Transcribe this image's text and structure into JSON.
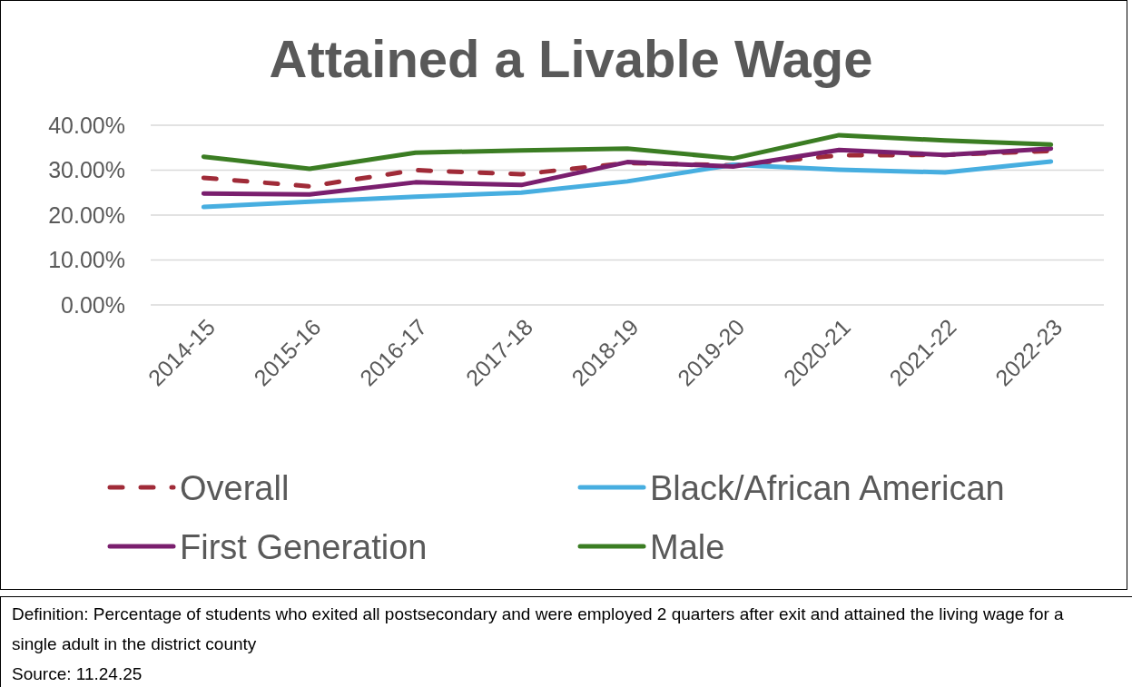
{
  "chart_data": {
    "type": "line",
    "title": "Attained a Livable Wage",
    "categories": [
      "2014-15",
      "2015-16",
      "2016-17",
      "2017-18",
      "2018-19",
      "2019-20",
      "2020-21",
      "2021-22",
      "2022-23"
    ],
    "series": [
      {
        "name": "Overall",
        "color": "#a02b38",
        "line_style": "dashed",
        "values": [
          28.3,
          26.4,
          30.0,
          29.1,
          31.6,
          31.1,
          33.3,
          33.4,
          34.3
        ]
      },
      {
        "name": "Black/African American",
        "color": "#47aee0",
        "values": [
          21.8,
          23.0,
          24.1,
          25.0,
          27.5,
          31.2,
          30.1,
          29.5,
          31.9
        ]
      },
      {
        "name": "First Generation",
        "color": "#7a1f6e",
        "values": [
          24.8,
          24.6,
          27.3,
          26.7,
          31.8,
          30.8,
          34.5,
          33.4,
          34.8
        ]
      },
      {
        "name": "Male",
        "color": "#3b7d23",
        "values": [
          33.0,
          30.3,
          33.9,
          34.4,
          34.8,
          32.6,
          37.8,
          36.6,
          35.7
        ]
      }
    ],
    "ylim": [
      0,
      40
    ],
    "yticks": [
      {
        "value": 0,
        "label": "0.00%"
      },
      {
        "value": 10,
        "label": "10.00%"
      },
      {
        "value": 20,
        "label": "20.00%"
      },
      {
        "value": 30,
        "label": "30.00%"
      },
      {
        "value": 40,
        "label": "40.00%"
      }
    ],
    "grid": "y",
    "legend": "bottom",
    "line_style": "solid",
    "annotations": [
      "Definition: Percentage of students who exited all postsecondary and were employed 2 quarters after exit and attained the living wage for a single adult in the district county",
      "Source: 11.24.25"
    ]
  }
}
